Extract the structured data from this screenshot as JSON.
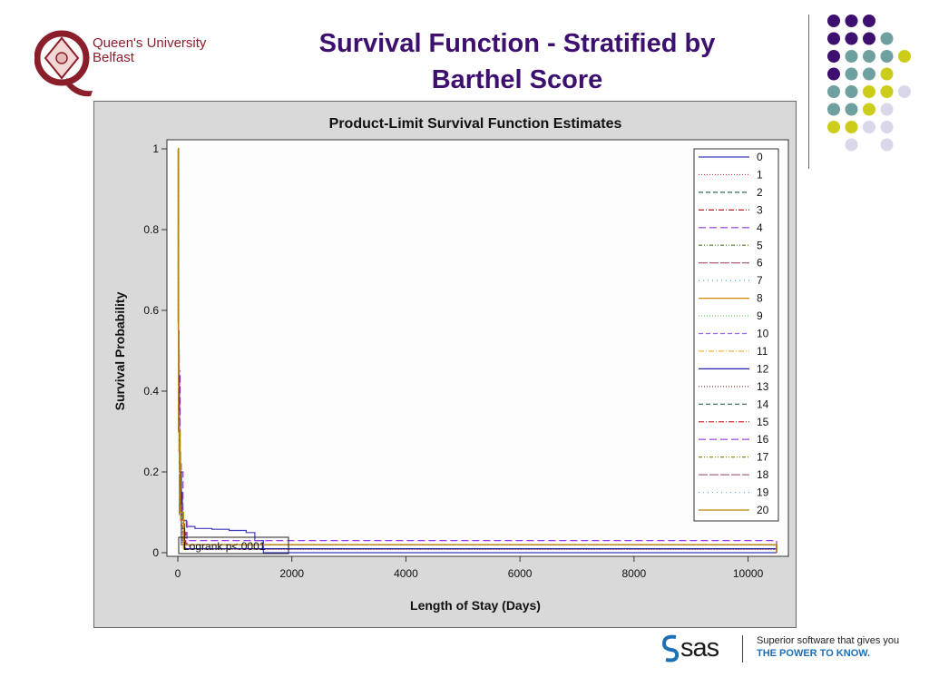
{
  "slide": {
    "title_line1": "Survival Function - Stratified by",
    "title_line2": "Barthel Score",
    "logo": {
      "name": "Queen's University Belfast",
      "line1": "Queen's University",
      "line2": "Belfast"
    },
    "footer": {
      "brand": "sas",
      "tagline1": "Superior software that gives you",
      "tagline2": "THE POWER TO KNOW."
    },
    "colors": {
      "title": "#3d0f6e",
      "qub_red": "#8a1f2b",
      "dot_purple": "#3d0f6e",
      "dot_teal": "#6fa0a0",
      "dot_yellow": "#cccc1a",
      "dot_lavender": "#d8d8ea",
      "sas_blue": "#1d6fb6"
    }
  },
  "chart_data": {
    "type": "line",
    "title": "Product-Limit Survival Function Estimates",
    "xlabel": "Length of Stay (Days)",
    "ylabel": "Survival Probability",
    "xlim": [
      0,
      10500
    ],
    "ylim": [
      0,
      1
    ],
    "xticks": [
      0,
      2000,
      4000,
      6000,
      8000,
      10000
    ],
    "yticks": [
      0,
      0.2,
      0.4,
      0.6,
      0.8,
      1
    ],
    "ytick_labels": [
      "0",
      "0.2",
      "0.4",
      "0.6",
      "0.8",
      "1"
    ],
    "annotation": "Logrank p<.0001",
    "legend_position": "right-inside",
    "grid": false,
    "series": [
      {
        "name": "0",
        "color": "#3b3bbf",
        "dash": "",
        "x": [
          0,
          10,
          20,
          40,
          80,
          150,
          300,
          600,
          900,
          1200,
          1350,
          1500,
          10500
        ],
        "y": [
          1,
          0.55,
          0.3,
          0.15,
          0.08,
          0.065,
          0.06,
          0.058,
          0.055,
          0.05,
          0.03,
          0.0,
          0.0
        ]
      },
      {
        "name": "1",
        "color": "#cc3333",
        "dash": "1,2",
        "x": [
          0,
          10,
          30,
          60,
          120,
          200,
          10500
        ],
        "y": [
          1,
          0.4,
          0.15,
          0.06,
          0.02,
          0.008,
          0.008
        ]
      },
      {
        "name": "2",
        "color": "#336655",
        "dash": "5,3",
        "x": [
          0,
          10,
          30,
          60,
          120,
          10500
        ],
        "y": [
          1,
          0.38,
          0.12,
          0.05,
          0.01,
          0.01
        ]
      },
      {
        "name": "3",
        "color": "#aa2222",
        "dash": "6,2,1,2",
        "x": [
          0,
          12,
          30,
          70,
          140,
          10500
        ],
        "y": [
          1,
          0.42,
          0.14,
          0.05,
          0.01,
          0.01
        ]
      },
      {
        "name": "4",
        "color": "#9933cc",
        "dash": "8,4",
        "x": [
          0,
          15,
          40,
          90,
          160,
          10500
        ],
        "y": [
          1,
          0.45,
          0.2,
          0.08,
          0.02,
          0.0
        ]
      },
      {
        "name": "5",
        "color": "#668833",
        "dash": "4,2,1,2,1,2",
        "x": [
          0,
          12,
          30,
          80,
          10500
        ],
        "y": [
          1,
          0.35,
          0.12,
          0.02,
          0.0
        ]
      },
      {
        "name": "6",
        "color": "#a05070",
        "dash": "10,2",
        "x": [
          0,
          10,
          25,
          60,
          120,
          10500
        ],
        "y": [
          1,
          0.5,
          0.22,
          0.08,
          0.02,
          0.0
        ]
      },
      {
        "name": "7",
        "color": "#44aacc",
        "dash": "1,4",
        "x": [
          0,
          10,
          25,
          70,
          10500
        ],
        "y": [
          1,
          0.3,
          0.1,
          0.02,
          0.0
        ]
      },
      {
        "name": "8",
        "color": "#cc8800",
        "dash": "",
        "x": [
          0,
          8,
          20,
          50,
          100,
          10500
        ],
        "y": [
          1,
          0.55,
          0.25,
          0.08,
          0.01,
          0.0
        ]
      },
      {
        "name": "9",
        "color": "#44bb44",
        "dash": "1,2",
        "x": [
          0,
          10,
          25,
          60,
          10500
        ],
        "y": [
          1,
          0.32,
          0.1,
          0.02,
          0.0
        ]
      },
      {
        "name": "10",
        "color": "#9966ee",
        "dash": "5,3",
        "x": [
          0,
          10,
          25,
          60,
          10500
        ],
        "y": [
          1,
          0.3,
          0.09,
          0.02,
          0.0
        ]
      },
      {
        "name": "11",
        "color": "#eeaa33",
        "dash": "6,2,1,2",
        "x": [
          0,
          10,
          25,
          60,
          10500
        ],
        "y": [
          1,
          0.3,
          0.1,
          0.02,
          0.0
        ]
      },
      {
        "name": "12",
        "color": "#2222aa",
        "dash": "",
        "x": [
          0,
          10,
          25,
          60,
          120,
          10500
        ],
        "y": [
          1,
          0.44,
          0.2,
          0.06,
          0.01,
          0.0
        ]
      },
      {
        "name": "13",
        "color": "#883333",
        "dash": "1,2",
        "x": [
          0,
          10,
          25,
          60,
          10500
        ],
        "y": [
          1,
          0.3,
          0.1,
          0.02,
          0.0
        ]
      },
      {
        "name": "14",
        "color": "#336655",
        "dash": "5,3",
        "x": [
          0,
          10,
          25,
          60,
          10500
        ],
        "y": [
          1,
          0.3,
          0.1,
          0.02,
          0.0
        ]
      },
      {
        "name": "15",
        "color": "#cc3333",
        "dash": "6,2,1,2",
        "x": [
          0,
          10,
          25,
          60,
          10500
        ],
        "y": [
          1,
          0.32,
          0.1,
          0.02,
          0.0
        ]
      },
      {
        "name": "16",
        "color": "#9933ee",
        "dash": "8,4",
        "x": [
          0,
          10,
          25,
          60,
          10500
        ],
        "y": [
          1,
          0.35,
          0.12,
          0.03,
          0.0
        ]
      },
      {
        "name": "17",
        "color": "#888822",
        "dash": "4,2,1,2,1,2",
        "x": [
          0,
          10,
          25,
          60,
          10500
        ],
        "y": [
          1,
          0.32,
          0.1,
          0.02,
          0.0
        ]
      },
      {
        "name": "18",
        "color": "#aa6688",
        "dash": "10,2",
        "x": [
          0,
          10,
          25,
          60,
          10500
        ],
        "y": [
          1,
          0.34,
          0.1,
          0.02,
          0.0
        ]
      },
      {
        "name": "19",
        "color": "#66aadd",
        "dash": "1,4",
        "x": [
          0,
          10,
          25,
          60,
          10500
        ],
        "y": [
          1,
          0.3,
          0.1,
          0.02,
          0.0
        ]
      },
      {
        "name": "20",
        "color": "#bb8800",
        "dash": "",
        "x": [
          0,
          5,
          15,
          40,
          100,
          10500
        ],
        "y": [
          1,
          0.57,
          0.3,
          0.1,
          0.02,
          0.0
        ]
      }
    ]
  }
}
